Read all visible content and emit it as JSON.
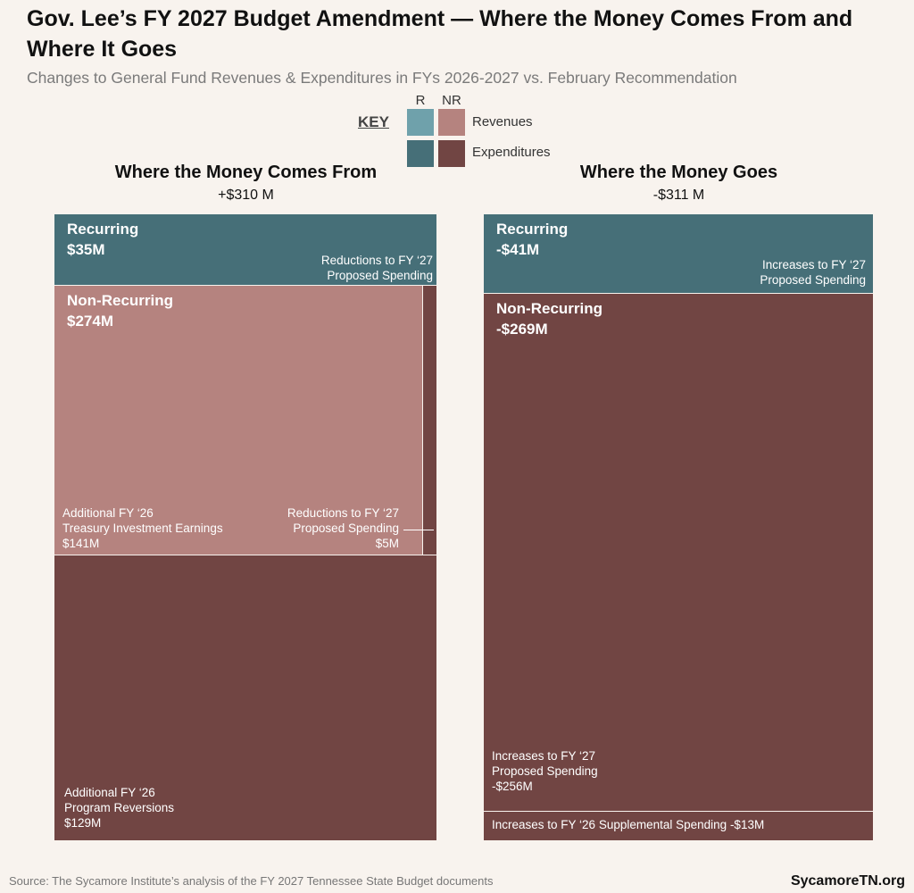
{
  "title": "Gov. Lee’s FY 2027 Budget Amendment  — Where the Money Comes From and Where It Goes",
  "subtitle": "Changes to General Fund Revenues & Expenditures in FYs 2026-2027 vs. February Recommendation",
  "key": {
    "title": "KEY",
    "columns": [
      "R",
      "NR"
    ],
    "rows": [
      "Revenues",
      "Expenditures"
    ],
    "colors": [
      [
        "#6fa1ab",
        "#b5837f"
      ],
      [
        "#466f78",
        "#714543"
      ]
    ]
  },
  "chart_data": {
    "type": "treemap",
    "panels": [
      {
        "title": "Where the Money Comes From",
        "total": 310,
        "total_label": "+$310 M",
        "groups": [
          {
            "name": "Recurring",
            "value": 35,
            "value_label": "$35M",
            "items": [
              {
                "name": [
                  "Reductions to FY ‘27",
                  "Proposed Spending"
                ],
                "color": "#466f78"
              }
            ]
          },
          {
            "name": "Non-Recurring",
            "value": 274,
            "value_label": "$274M",
            "items": [
              {
                "name": [
                  "Additional FY ‘26",
                  "Treasury Investment Earnings"
                ],
                "value": 141,
                "value_label": "$141M",
                "color": "#b5837f"
              },
              {
                "name": [
                  "Reductions to FY ‘27",
                  "Proposed Spending"
                ],
                "value": 5,
                "value_label": "$5M",
                "color": "#714543"
              },
              {
                "name": [
                  "Additional FY ‘26",
                  "Program Reversions"
                ],
                "value": 129,
                "value_label": "$129M",
                "color": "#714543"
              }
            ]
          }
        ]
      },
      {
        "title": "Where the Money Goes",
        "total": -311,
        "total_label": "-$311 M",
        "groups": [
          {
            "name": "Recurring",
            "value": -41,
            "value_label": "-$41M",
            "items": [
              {
                "name": [
                  "Increases to FY ‘27",
                  "Proposed Spending"
                ],
                "color": "#466f78"
              }
            ]
          },
          {
            "name": "Non-Recurring",
            "value": -269,
            "value_label": "-$269M",
            "items": [
              {
                "name": [
                  "Increases to FY ‘27",
                  "Proposed Spending"
                ],
                "value": -256,
                "value_label": "-$256M",
                "color": "#714543"
              },
              {
                "name": [
                  "Increases to FY ‘26 Supplemental Spending"
                ],
                "value": -13,
                "value_label": "-$13M",
                "color": "#714543"
              }
            ]
          }
        ]
      }
    ]
  },
  "source": "Source: The Sycamore Institute’s analysis of the FY 2027 Tennessee State Budget documents",
  "brand": "SycamoreTN.org"
}
